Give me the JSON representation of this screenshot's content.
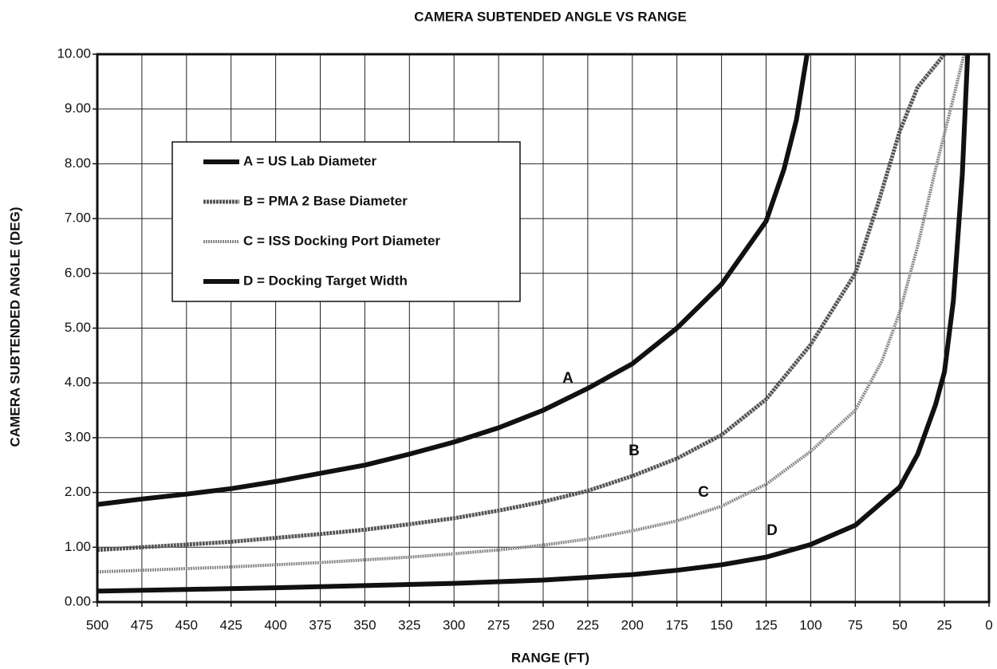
{
  "chart_data": {
    "type": "line",
    "title": "CAMERA SUBTENDED ANGLE  VS  RANGE",
    "xlabel": "RANGE (FT)",
    "ylabel": "CAMERA SUBTENDED ANGLE (DEG)",
    "xlim": [
      500,
      0
    ],
    "ylim": [
      0,
      10
    ],
    "xticks": [
      500,
      475,
      450,
      425,
      400,
      375,
      350,
      325,
      300,
      275,
      250,
      225,
      200,
      175,
      150,
      125,
      100,
      75,
      50,
      25,
      0
    ],
    "yticks": [
      {
        "value": 0,
        "label": "0.00"
      },
      {
        "value": 1,
        "label": "1.00"
      },
      {
        "value": 2,
        "label": "2.00"
      },
      {
        "value": 3,
        "label": "3.00"
      },
      {
        "value": 4,
        "label": "4.00"
      },
      {
        "value": 5,
        "label": "5.00"
      },
      {
        "value": 6,
        "label": "6.00"
      },
      {
        "value": 7,
        "label": "7.00"
      },
      {
        "value": 8,
        "label": "8.00"
      },
      {
        "value": 9,
        "label": "9.00"
      },
      {
        "value": 10,
        "label": "10.00"
      }
    ],
    "grid": true,
    "legend": "upper left",
    "series": [
      {
        "name": "A  =  US Lab Diameter",
        "color": "#111111",
        "x": [
          500,
          475,
          450,
          425,
          400,
          375,
          350,
          325,
          300,
          275,
          250,
          225,
          200,
          175,
          150,
          125,
          115,
          108,
          102
        ],
        "values": [
          1.78,
          1.88,
          1.97,
          2.07,
          2.2,
          2.35,
          2.5,
          2.7,
          2.92,
          3.18,
          3.5,
          3.9,
          4.35,
          5.0,
          5.8,
          6.95,
          7.9,
          8.8,
          10
        ]
      },
      {
        "name": "B  =  PMA 2 Base Diameter",
        "color": "#555555",
        "x": [
          500,
          475,
          450,
          425,
          400,
          375,
          350,
          325,
          300,
          275,
          250,
          225,
          200,
          175,
          150,
          125,
          100,
          75,
          62,
          50,
          40,
          25
        ],
        "values": [
          0.95,
          1.0,
          1.05,
          1.1,
          1.17,
          1.24,
          1.32,
          1.42,
          1.53,
          1.67,
          1.83,
          2.03,
          2.3,
          2.62,
          3.05,
          3.7,
          4.7,
          6.0,
          7.3,
          8.6,
          9.4,
          10
        ]
      },
      {
        "name": "C  =  ISS Docking Port Diameter",
        "color": "#8a8a8a",
        "x": [
          500,
          475,
          450,
          425,
          400,
          375,
          350,
          325,
          300,
          275,
          250,
          225,
          200,
          175,
          150,
          125,
          100,
          75,
          60,
          50,
          40,
          30,
          20,
          14
        ],
        "values": [
          0.55,
          0.58,
          0.61,
          0.64,
          0.68,
          0.72,
          0.77,
          0.82,
          0.88,
          0.95,
          1.04,
          1.15,
          1.3,
          1.48,
          1.75,
          2.15,
          2.75,
          3.5,
          4.4,
          5.3,
          6.5,
          7.9,
          9.2,
          10
        ]
      },
      {
        "name": "D  =  Docking Target Width",
        "color": "#111111",
        "x": [
          500,
          450,
          400,
          350,
          300,
          250,
          225,
          200,
          175,
          150,
          125,
          100,
          75,
          50,
          40,
          30,
          25,
          20,
          15,
          12
        ],
        "values": [
          0.2,
          0.23,
          0.26,
          0.3,
          0.34,
          0.4,
          0.45,
          0.5,
          0.58,
          0.68,
          0.82,
          1.05,
          1.4,
          2.1,
          2.7,
          3.6,
          4.2,
          5.5,
          7.8,
          10
        ]
      }
    ],
    "annotations": [
      "A",
      "B",
      "C",
      "D"
    ]
  }
}
